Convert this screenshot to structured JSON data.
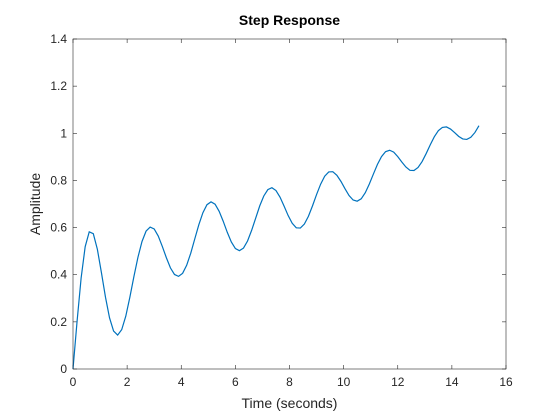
{
  "chart_data": {
    "type": "line",
    "title": "Step Response",
    "xlabel": "Time (seconds)",
    "ylabel": "Amplitude",
    "xlim": [
      0,
      16
    ],
    "ylim": [
      0,
      1.4
    ],
    "xticks": [
      0,
      2,
      4,
      6,
      8,
      10,
      12,
      14,
      16
    ],
    "yticks": [
      0,
      0.2,
      0.4,
      0.6,
      0.8,
      1,
      1.2,
      1.4
    ],
    "grid": false,
    "line_color": "#0072BD",
    "series": [
      {
        "x": [
          0,
          0.15,
          0.3,
          0.45,
          0.6,
          0.75,
          0.9,
          1.05,
          1.2,
          1.35,
          1.5,
          1.65,
          1.8,
          1.95,
          2.1,
          2.25,
          2.4,
          2.55,
          2.7,
          2.85,
          3.0,
          3.15,
          3.3,
          3.45,
          3.6,
          3.75,
          3.9,
          4.05,
          4.2,
          4.35,
          4.5,
          4.65,
          4.8,
          4.95,
          5.1,
          5.25,
          5.4,
          5.55,
          5.7,
          5.85,
          6.0,
          6.15,
          6.3,
          6.45,
          6.6,
          6.75,
          6.9,
          7.05,
          7.2,
          7.35,
          7.5,
          7.65,
          7.8,
          7.95,
          8.1,
          8.25,
          8.4,
          8.55,
          8.7,
          8.85,
          9.0,
          9.15,
          9.3,
          9.45,
          9.6,
          9.75,
          9.9,
          10.05,
          10.2,
          10.35,
          10.5,
          10.65,
          10.8,
          10.95,
          11.1,
          11.25,
          11.4,
          11.55,
          11.7,
          11.85,
          12.0,
          12.15,
          12.3,
          12.45,
          12.6,
          12.75,
          12.9,
          13.05,
          13.2,
          13.35,
          13.5,
          13.65,
          13.8,
          13.95,
          14.1,
          14.25,
          14.4,
          14.55,
          14.7,
          14.85,
          15.0
        ],
        "y": [
          0.0,
          0.202,
          0.386,
          0.519,
          0.582,
          0.574,
          0.508,
          0.409,
          0.305,
          0.217,
          0.161,
          0.144,
          0.167,
          0.224,
          0.304,
          0.392,
          0.474,
          0.541,
          0.585,
          0.602,
          0.594,
          0.564,
          0.52,
          0.472,
          0.429,
          0.401,
          0.393,
          0.406,
          0.44,
          0.491,
          0.552,
          0.612,
          0.663,
          0.697,
          0.709,
          0.699,
          0.669,
          0.627,
          0.58,
          0.539,
          0.511,
          0.502,
          0.513,
          0.543,
          0.588,
          0.64,
          0.692,
          0.734,
          0.761,
          0.769,
          0.757,
          0.729,
          0.691,
          0.651,
          0.618,
          0.599,
          0.598,
          0.615,
          0.648,
          0.692,
          0.74,
          0.784,
          0.818,
          0.836,
          0.837,
          0.822,
          0.796,
          0.765,
          0.736,
          0.717,
          0.712,
          0.722,
          0.748,
          0.785,
          0.827,
          0.868,
          0.901,
          0.922,
          0.928,
          0.92,
          0.901,
          0.878,
          0.857,
          0.843,
          0.842,
          0.855,
          0.88,
          0.914,
          0.951,
          0.985,
          1.011,
          1.025,
          1.027,
          1.018,
          1.003,
          0.987,
          0.976,
          0.974,
          0.983,
          1.003,
          1.032
        ]
      }
    ]
  }
}
